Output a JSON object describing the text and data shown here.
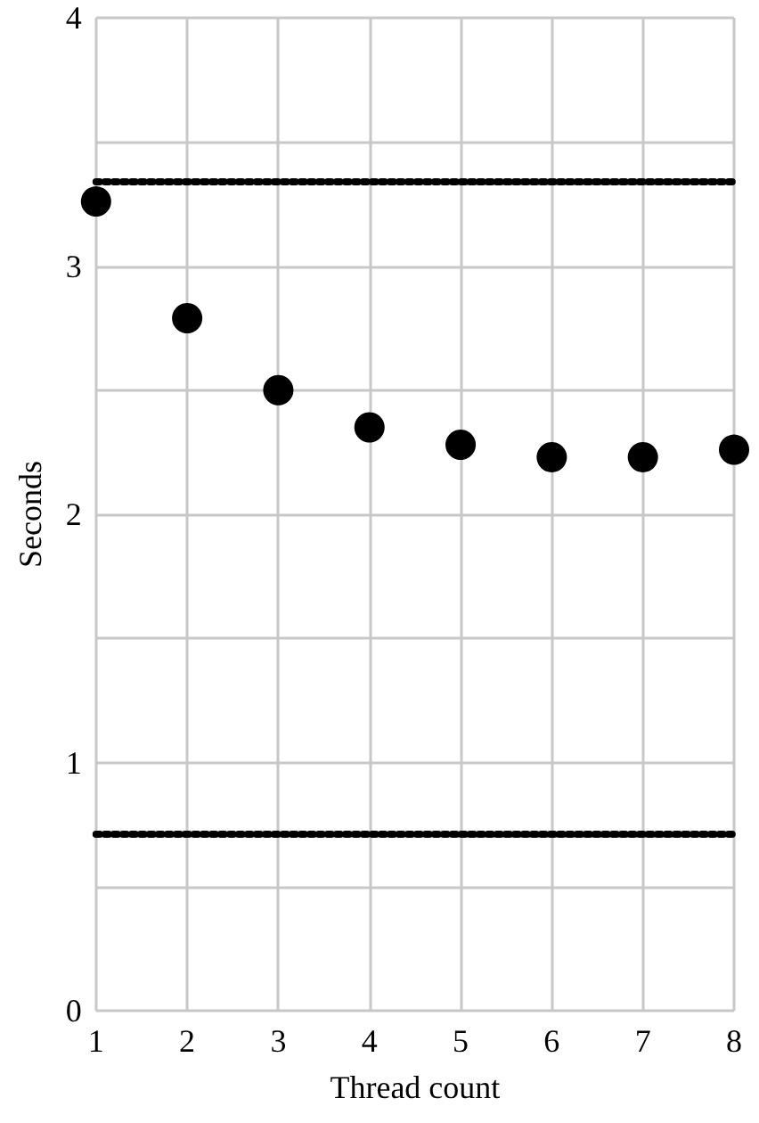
{
  "chart_data": {
    "type": "scatter",
    "xlabel": "Thread count",
    "ylabel": "Seconds",
    "x": [
      1,
      2,
      3,
      4,
      5,
      6,
      7,
      8
    ],
    "series": [
      {
        "color": "#000000",
        "values": [
          3.26,
          2.79,
          2.5,
          2.35,
          2.28,
          2.23,
          2.23,
          2.26
        ]
      }
    ],
    "xlim": [
      1,
      8
    ],
    "xticks": [
      1,
      2,
      3,
      4,
      5,
      6,
      7,
      8
    ],
    "ylim": [
      0,
      4
    ],
    "yticks": [
      0,
      {
        "value": 0.5,
        "label": null
      },
      1,
      {
        "value": 1.5,
        "label": null
      },
      2,
      {
        "value": 2.5,
        "label": null
      },
      3,
      {
        "value": 3.5,
        "label": null
      },
      4
    ],
    "ref_lines": [
      {
        "axis": "y",
        "value": 3.34,
        "color": "#000000",
        "line_style": "dotted"
      },
      {
        "axis": "y",
        "value": 0.71,
        "color": "#000000",
        "line_style": "dotted"
      }
    ],
    "grid": true,
    "marker": "circle"
  }
}
